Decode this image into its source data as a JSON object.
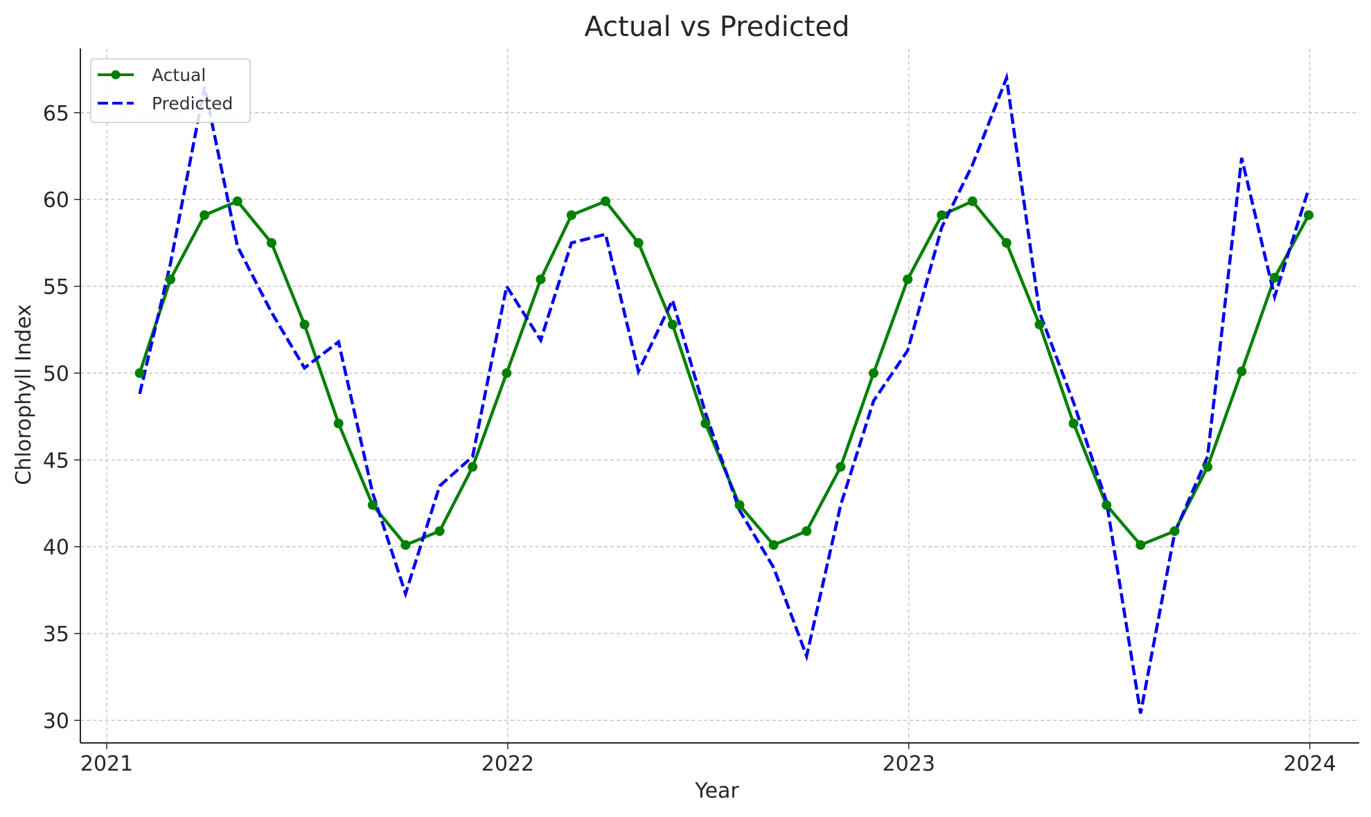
{
  "chart_data": {
    "type": "line",
    "title": "Actual vs Predicted",
    "xlabel": "Year",
    "ylabel": "Chlorophyll Index",
    "xlim": [
      "2020-12-08",
      "2024-02-15"
    ],
    "ylim": [
      28.7,
      68.7
    ],
    "x_ticks": [
      "2021-01-01",
      "2022-01-01",
      "2023-01-01",
      "2024-01-01"
    ],
    "x_tick_labels": [
      "2021",
      "2022",
      "2023",
      "2024"
    ],
    "y_ticks": [
      30,
      35,
      40,
      45,
      50,
      55,
      60,
      65
    ],
    "grid": true,
    "legend_position": "top-left",
    "x": [
      "2021-01-31",
      "2021-02-28",
      "2021-03-31",
      "2021-04-30",
      "2021-05-31",
      "2021-06-30",
      "2021-07-31",
      "2021-08-31",
      "2021-09-30",
      "2021-10-31",
      "2021-11-30",
      "2021-12-31",
      "2022-01-31",
      "2022-02-28",
      "2022-03-31",
      "2022-04-30",
      "2022-05-31",
      "2022-06-30",
      "2022-07-31",
      "2022-08-31",
      "2022-09-30",
      "2022-10-31",
      "2022-11-30",
      "2022-12-31",
      "2023-01-31",
      "2023-02-28",
      "2023-03-31",
      "2023-04-30",
      "2023-05-31",
      "2023-06-30",
      "2023-07-31",
      "2023-08-31",
      "2023-09-30",
      "2023-10-31",
      "2023-11-30",
      "2023-12-31"
    ],
    "series": [
      {
        "name": "Actual",
        "color": "#008000",
        "style": "solid-markers",
        "values": [
          50.0,
          55.4,
          59.1,
          59.9,
          57.5,
          52.8,
          47.1,
          42.4,
          40.1,
          40.9,
          44.6,
          50.0,
          55.4,
          59.1,
          59.9,
          57.5,
          52.8,
          47.1,
          42.4,
          40.1,
          40.9,
          44.6,
          50.0,
          55.4,
          59.1,
          59.9,
          57.5,
          52.8,
          47.1,
          42.4,
          40.1,
          40.9,
          44.6,
          50.1,
          55.5,
          59.1
        ]
      },
      {
        "name": "Predicted",
        "color": "#0000ee",
        "style": "dashed",
        "values": [
          48.8,
          56.3,
          66.5,
          57.3,
          53.5,
          50.3,
          51.8,
          43.1,
          37.3,
          43.5,
          45.2,
          55.0,
          51.9,
          57.5,
          58.0,
          50.1,
          54.2,
          47.7,
          42.1,
          38.8,
          33.7,
          42.4,
          48.4,
          51.3,
          58.4,
          62.0,
          67.0,
          53.5,
          48.3,
          42.6,
          30.4,
          40.8,
          45.2,
          62.4,
          54.4,
          60.6
        ]
      }
    ]
  }
}
